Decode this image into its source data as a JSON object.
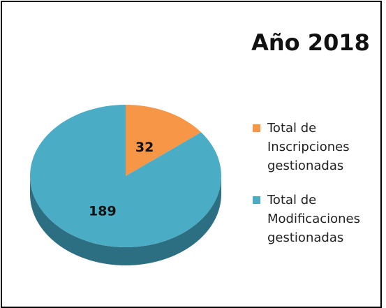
{
  "chart_data": {
    "type": "pie",
    "title": "Año 2018",
    "categories": [
      "Total de Inscripciones gestionadas",
      "Total de Modificaciones gestionadas"
    ],
    "values": [
      32,
      189
    ],
    "colors": [
      "#f79646",
      "#4bacc6"
    ]
  }
}
